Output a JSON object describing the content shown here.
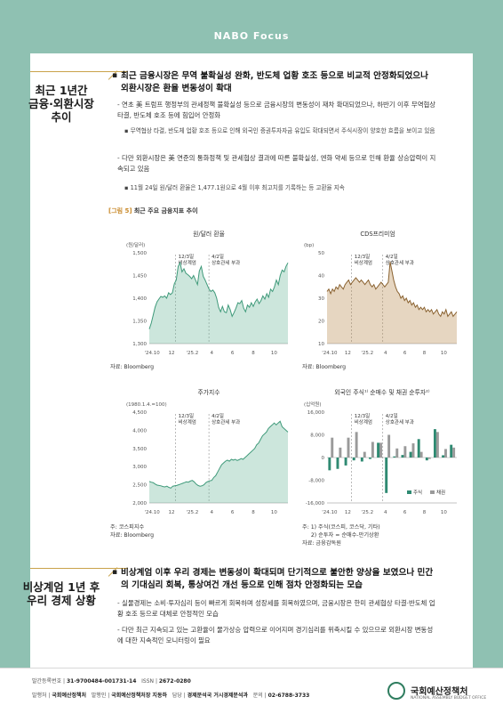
{
  "header": {
    "logo": "NABO Focus"
  },
  "section1": {
    "side_title": [
      "최근 1년간",
      "금융·외환시장",
      "추이"
    ],
    "headline": "최근 금융시장은 무역 불확실성 완화, 반도체 업황 호조 등으로 비교적 안정화되었으나 외환시장은 환율 변동성이 확대",
    "items": [
      {
        "type": "dash",
        "text": "연초 美 트럼프 행정부의 관세정책 불확실성 등으로 금융시장의 변동성이 재차 확대되었으나, 하반기 이후 무역협상 타결, 반도체 호조 등에 힘입어 안정화"
      },
      {
        "type": "dot",
        "text": "무역협상 타결, 반도체 업황 호조 등으로 인해 외국인 증권투자자금 유입도 확대되면서 주식시장이 양호한 흐름을 보이고 있음"
      },
      {
        "type": "dash",
        "text": "다만 외환시장은 美 연준의 통화정책 및 관세협상 결과에 따른 불확실성, 엔화 약세 등으로 인해 환율 상승압력이 지속되고 있음"
      },
      {
        "type": "dot",
        "text": "11월 24일 원/달러 환율은 1,477.1원으로 4월 이후 최고치를 기록하는 등 고환율 지속"
      }
    ]
  },
  "figure": {
    "label": "[그림 5]",
    "title": "최근 주요 금융지표 추이",
    "annotations": {
      "a1": "12/3일",
      "a1b": "비상계엄",
      "a2": "4/2일",
      "a2b": "상호관세 부과"
    },
    "x_ticks": [
      "'24.10",
      "12",
      "'25.2",
      "4",
      "6",
      "8",
      "10"
    ]
  },
  "chart_data": [
    {
      "type": "area",
      "title": "원/달러 환율",
      "ylabel": "(원/달러)",
      "ylim": [
        1300,
        1500
      ],
      "y_ticks": [
        "1,500",
        "1,450",
        "1,400",
        "1,350",
        "1,300"
      ],
      "values": [
        1332,
        1345,
        1362,
        1380,
        1392,
        1398,
        1404,
        1402,
        1405,
        1400,
        1412,
        1408,
        1412,
        1432,
        1440,
        1470,
        1478,
        1458,
        1465,
        1455,
        1452,
        1448,
        1443,
        1450,
        1440,
        1430,
        1460,
        1470,
        1448,
        1440,
        1430,
        1420,
        1415,
        1418,
        1412,
        1400,
        1380,
        1370,
        1382,
        1370,
        1368,
        1385,
        1375,
        1360,
        1368,
        1378,
        1390,
        1388,
        1395,
        1378,
        1370,
        1385,
        1380,
        1390,
        1382,
        1392,
        1398,
        1388,
        1395,
        1405,
        1398,
        1410,
        1402,
        1420,
        1415,
        1425,
        1440,
        1430,
        1450,
        1462,
        1458,
        1470,
        1478
      ],
      "source": "자료: Bloomberg"
    },
    {
      "type": "area",
      "title": "CDS프리미엄",
      "ylabel": "(bp)",
      "ylim": [
        10,
        50
      ],
      "y_ticks": [
        "50",
        "40",
        "30",
        "20",
        "10"
      ],
      "values": [
        33,
        34,
        32,
        34,
        33,
        35,
        34,
        36,
        35,
        34,
        36,
        37,
        38,
        36,
        37,
        38,
        39,
        38,
        37,
        38,
        37,
        36,
        37,
        38,
        36,
        35,
        36,
        34,
        35,
        36,
        37,
        36,
        35,
        36,
        37,
        46,
        42,
        38,
        35,
        33,
        32,
        30,
        31,
        29,
        30,
        28,
        29,
        27,
        28,
        26,
        27,
        25,
        26,
        25,
        26,
        24,
        25,
        24,
        25,
        23,
        24,
        25,
        23,
        22,
        24,
        23,
        25,
        22,
        23,
        24,
        22,
        23,
        24
      ],
      "source": "자료: Bloomberg"
    },
    {
      "type": "area",
      "title": "주가지수",
      "ylabel": "(1980.1.4.=100)",
      "ylim": [
        2000,
        4500
      ],
      "y_ticks": [
        "4,500",
        "4,000",
        "3,500",
        "3,000",
        "2,500",
        "2,000"
      ],
      "values": [
        2590,
        2570,
        2560,
        2520,
        2490,
        2480,
        2470,
        2450,
        2440,
        2460,
        2430,
        2410,
        2460,
        2470,
        2480,
        2500,
        2520,
        2540,
        2560,
        2580,
        2570,
        2600,
        2620,
        2580,
        2520,
        2480,
        2460,
        2470,
        2500,
        2560,
        2590,
        2610,
        2620,
        2700,
        2750,
        2850,
        2950,
        3050,
        3100,
        3150,
        3180,
        3150,
        3200,
        3180,
        3200,
        3170,
        3190,
        3220,
        3200,
        3250,
        3300,
        3350,
        3400,
        3450,
        3500,
        3600,
        3650,
        3750,
        3850,
        3900,
        3950,
        4050,
        4100,
        4150,
        4200,
        4150,
        4200,
        4250,
        4100,
        4050,
        4000,
        3950
      ],
      "source": "주: 코스피지수\n자료: Bloomberg"
    },
    {
      "type": "bar",
      "title": "외국인 주식¹⁾ 순매수 및 채권 순투자²⁾",
      "ylabel": "(십억원)",
      "ylim": [
        -16000,
        16000
      ],
      "y_ticks": [
        "16,000",
        "8,000",
        "0",
        "-8,000",
        "-16,000"
      ],
      "series": [
        {
          "name": "주식",
          "values": [
            -4500,
            -4000,
            -2800,
            -1000,
            -1400,
            -500,
            5200,
            -12500,
            400,
            900,
            2000,
            6500,
            -1000,
            10000,
            800,
            4500
          ]
        },
        {
          "name": "채권",
          "values": [
            7000,
            3500,
            7000,
            9000,
            2000,
            5500,
            5200,
            8000,
            3200,
            4000,
            5000,
            2000,
            -500,
            9000,
            3000,
            3500
          ]
        }
      ],
      "source": "주: 1) 주식(코스피, 코스닥, 기타)\n     2) 순투자 = 순매수-만기상환\n자료: 금융감독원"
    }
  ],
  "section2": {
    "side_title": [
      "비상계엄 1년 후",
      "우리 경제 상황"
    ],
    "headline": "비상계엄 이후 우리 경제는 변동성이 확대되며 단기적으로 불안한 양상을 보였으나 민간의 기대심리 회복, 통상여건 개선 등으로 인해 점차 안정화되는 모습",
    "items": [
      {
        "type": "dash",
        "text": "실물경제는 소비·투자심리 등이 빠르게 회복하며 성장세를 회복하였으며, 금융시장은 한미 관세협상 타결·반도체 업황 호조 등으로 대체로 안정적인 모습"
      },
      {
        "type": "dash",
        "text": "다만 최근 지속되고 있는 고환율이 물가상승 압력으로 이어지며 경기심리를 위축시킬 수 있으므로 외환시장 변동성에 대한 지속적인 모니터링이 필요"
      }
    ]
  },
  "footer": {
    "reg_label": "발간등록번호",
    "reg_no": "31-9700484-001731-14",
    "issn_label": "ISSN",
    "issn": "2672-0280",
    "pub_label": "발행처",
    "pub": "국회예산정책처",
    "pubber_label": "발행인",
    "pubber": "국회예산정책처장 지동하",
    "dept_label": "담당",
    "dept": "경제분석국 거시경제분석과",
    "tel_label": "문의",
    "tel": "02-6788-3733",
    "org": "국회예산정책처",
    "org_en": "NATIONAL ASSEMBLY BUDGET OFFICE"
  },
  "colors": {
    "accent": "#c9a24a",
    "band": "#8fc1b2",
    "green": "#6db89a",
    "brown": "#b88a4e",
    "grey": "#9a9a9a",
    "teal": "#2f8a72"
  }
}
